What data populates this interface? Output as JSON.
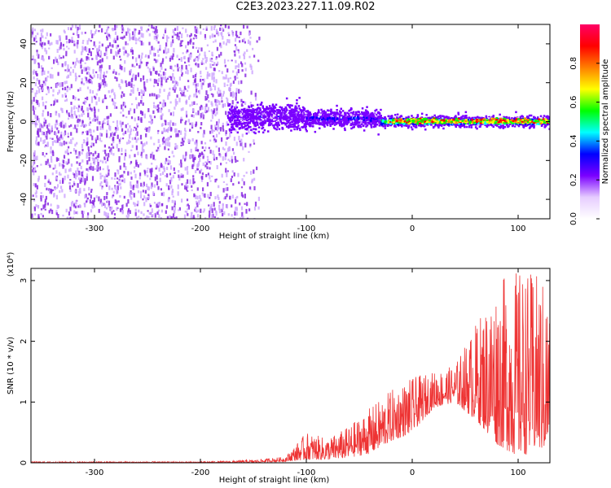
{
  "title": "C2E3.2023.227.11.09.R02",
  "chart_data": [
    {
      "type": "heatmap",
      "xlabel": "Height of straight line (km)",
      "ylabel": "Frequency (Hz)",
      "xlim": [
        -360,
        130
      ],
      "ylim": [
        -50,
        50
      ],
      "xticks": [
        -300,
        -200,
        -100,
        0,
        100
      ],
      "yticks": [
        -40,
        -20,
        0,
        20,
        40
      ],
      "colorbar": {
        "label": "Normalized spectral amplitude",
        "range": [
          0,
          1
        ],
        "ticks": [
          0.0,
          0.2,
          0.4,
          0.6,
          0.8
        ],
        "colormap": [
          "#ffffff",
          "#e6ccff",
          "#7a00ff",
          "#0000ff",
          "#00ffff",
          "#00ff00",
          "#ffff00",
          "#ff7f00",
          "#ff0000",
          "#ff0066"
        ]
      },
      "regions": [
        {
          "x": [
            -360,
            -175
          ],
          "freq_spread": 50,
          "amplitude": 0.15,
          "description_level": "noise"
        },
        {
          "x": [
            -175,
            -100
          ],
          "freq_center": 3,
          "freq_spread": 12,
          "amplitude": 0.3
        },
        {
          "x": [
            -100,
            -30
          ],
          "freq_center": 2,
          "freq_spread": 8,
          "amplitude": 0.4
        },
        {
          "x": [
            -30,
            130
          ],
          "freq_center": 0.5,
          "freq_spread": 5,
          "amplitude": 0.85
        }
      ]
    },
    {
      "type": "line",
      "xlabel": "Height of straight line (km)",
      "ylabel": "SNR (10 * v/v)",
      "ylabel_exponent": "(x10⁴)",
      "xlim": [
        -360,
        130
      ],
      "ylim": [
        0,
        3.2
      ],
      "xticks": [
        -300,
        -200,
        -100,
        0,
        100
      ],
      "yticks": [
        0,
        1,
        2,
        3
      ],
      "color": "#ee3333",
      "series": [
        {
          "x": [
            -360,
            -300,
            -250,
            -200,
            -175,
            -150,
            -120,
            -100,
            -80,
            -60,
            -40,
            -20,
            0,
            20,
            40,
            60,
            80,
            100,
            120,
            130
          ],
          "envelope_low": [
            0,
            0,
            0,
            0,
            0,
            0,
            0.02,
            0.05,
            0.05,
            0.08,
            0.15,
            0.35,
            0.5,
            0.9,
            1.0,
            0.7,
            0.3,
            0.1,
            0.2,
            0.2
          ],
          "envelope_high": [
            0.02,
            0.02,
            0.02,
            0.02,
            0.03,
            0.05,
            0.1,
            0.5,
            0.4,
            0.6,
            0.9,
            1.2,
            1.4,
            1.5,
            1.6,
            2.3,
            3.0,
            3.2,
            3.1,
            2.8
          ]
        }
      ]
    }
  ]
}
